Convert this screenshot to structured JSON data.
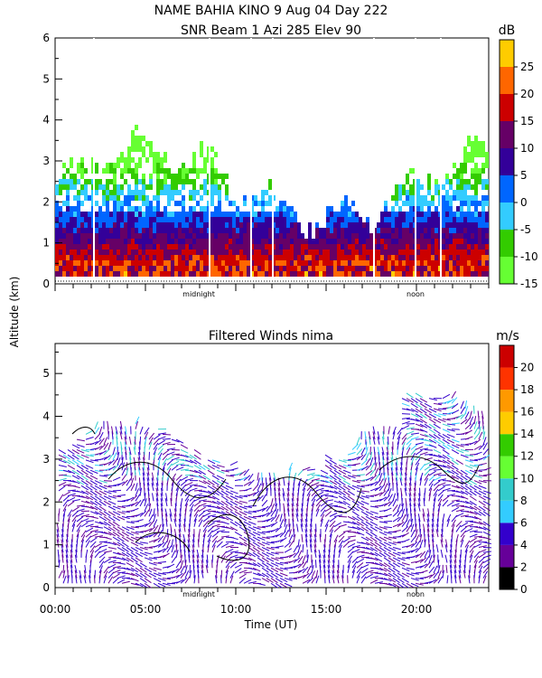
{
  "header": {
    "title_line1": "NAME BAHIA KINO    9 Aug 04 Day 222",
    "title_line2": "SNR Beam 1 Azi 285 Elev 90"
  },
  "chart_data": [
    {
      "type": "heatmap",
      "title": "SNR Beam 1 Azi 285 Elev 90",
      "xlabel": "",
      "ylabel": "Altitude (km)",
      "xlim": [
        0,
        24
      ],
      "ylim": [
        0,
        6
      ],
      "y_ticks": [
        "0",
        "1",
        "2",
        "3",
        "4",
        "5",
        "6"
      ],
      "x_markers": [
        "midnight",
        "noon"
      ],
      "colorbar": {
        "units": "dB",
        "ticks": [
          "-15",
          "-10",
          "-5",
          "0",
          "5",
          "10",
          "15",
          "20",
          "25"
        ],
        "colors": [
          "#66ff33",
          "#33cc00",
          "#33ccff",
          "#0066ff",
          "#330099",
          "#660066",
          "#cc0000",
          "#ff6600",
          "#ffcc00"
        ],
        "range": [
          -15,
          30
        ]
      }
    },
    {
      "type": "scatter",
      "title": "Filtered Winds nima",
      "xlabel": "Time (UT)",
      "ylabel": "Altitude (km)",
      "xlim": [
        0,
        24
      ],
      "ylim": [
        0,
        5.7
      ],
      "x_ticks": [
        "00:00",
        "05:00",
        "10:00",
        "15:00",
        "20:00"
      ],
      "y_ticks": [
        "0",
        "1",
        "2",
        "3",
        "4",
        "5"
      ],
      "x_markers": [
        "midnight",
        "noon"
      ],
      "colorbar": {
        "units": "m/s",
        "ticks": [
          "0",
          "2",
          "4",
          "6",
          "8",
          "10",
          "12",
          "14",
          "16",
          "18",
          "20"
        ],
        "colors": [
          "#000000",
          "#660099",
          "#3300cc",
          "#33ccff",
          "#33cccc",
          "#66ff33",
          "#33cc00",
          "#ffcc00",
          "#ff9900",
          "#ff3300",
          "#cc0000"
        ],
        "range": [
          0,
          22
        ]
      }
    }
  ]
}
